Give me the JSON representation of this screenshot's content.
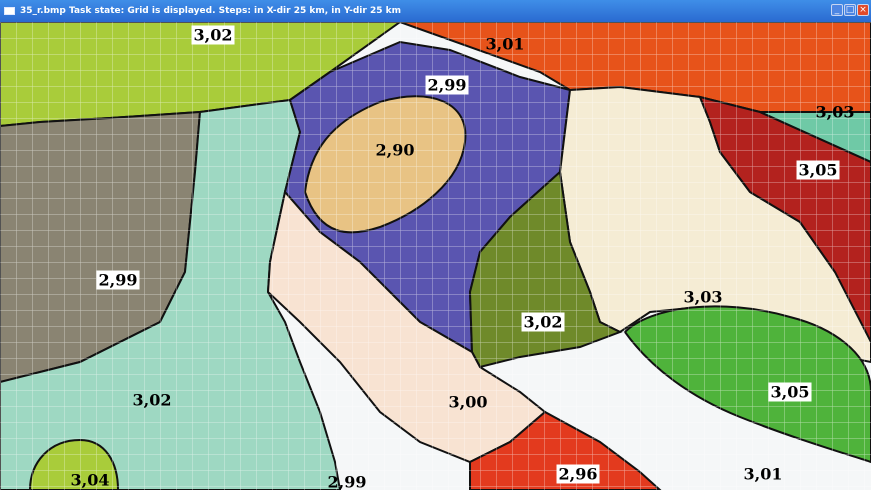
{
  "window": {
    "title": "35_r.bmp    Task state: Grid is displayed. Steps: in X-dir 25 km,  in Y-dir 25 km",
    "icons": [
      "window-icon",
      "minimize-icon",
      "maximize-icon",
      "close-icon"
    ]
  },
  "map": {
    "grid": true,
    "colors": {
      "yellow_green": "#a9cc3a",
      "orange_red": "#e7531a",
      "violet_blue": "#5a55b0",
      "light_tan": "#e8c384",
      "taupe": "#8a8472",
      "mint": "#9ed8c2",
      "cream": "#f5ecd4",
      "olive": "#6f8a2a",
      "dark_red": "#b3221e",
      "teal_mint": "#6fc9a6",
      "peach": "#f8e3d2",
      "green": "#4fb33b",
      "red": "#e33a1e",
      "white": "#f5f7f8"
    },
    "labels": {
      "top_left": "3,02",
      "top_right": "3,01",
      "violet": "2,99",
      "tan": "2,90",
      "right_corner": "3,03",
      "dark_red": "3,05",
      "taupe": "2,99",
      "olive": "3,02",
      "cream_right": "3,03",
      "mint_left": "3,02",
      "peach": "3,00",
      "green": "3,05",
      "bottom_left_green": "3,04",
      "white_bottom": "2,99",
      "red_bottom": "2,96",
      "white_right": "3,01"
    }
  }
}
